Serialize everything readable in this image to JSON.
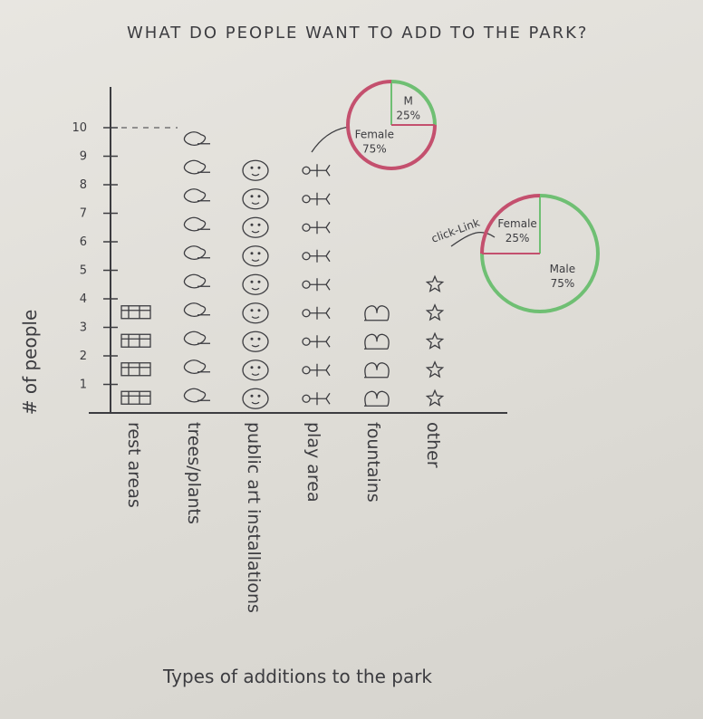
{
  "chart_data": {
    "type": "bar",
    "title": "WHAT DO PEOPLE WANT TO ADD TO THE PARK?",
    "xlabel": "Types of additions to the park",
    "ylabel": "# of people",
    "ylim": [
      0,
      10
    ],
    "yticks": [
      "1",
      "2",
      "3",
      "4",
      "5",
      "6",
      "7",
      "8",
      "9",
      "10"
    ],
    "categories": [
      "rest areas",
      "trees/plants",
      "public art installations",
      "play area",
      "fountains",
      "other"
    ],
    "values": [
      4,
      10,
      9,
      9,
      4,
      5
    ],
    "icons": [
      "bench-icon",
      "tree-icon",
      "face-icon",
      "person-icon",
      "fountain-icon",
      "star-icon"
    ],
    "bar_color": "#3c3c40",
    "annotation": "click-Link",
    "pies": [
      {
        "category": "play area",
        "slices": [
          {
            "label": "M",
            "value_label": "25%",
            "value": 25,
            "color": "#6fbf73"
          },
          {
            "label": "Female",
            "value_label": "75%",
            "value": 75,
            "color": "#c4506e"
          }
        ]
      },
      {
        "category": "other",
        "slices": [
          {
            "label": "Male",
            "value_label": "75%",
            "value": 75,
            "color": "#6fbf73"
          },
          {
            "label": "Female",
            "value_label": "25%",
            "value": 25,
            "color": "#c4506e"
          }
        ]
      }
    ]
  }
}
